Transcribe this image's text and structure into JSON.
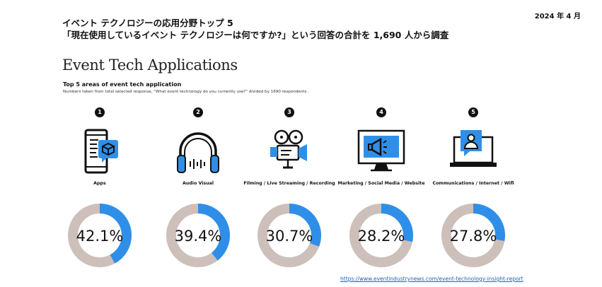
{
  "header": {
    "date": "2024 年 4 月",
    "jp_line1": "イベント テクノロジーの応用分野トップ 5",
    "jp_line2": "「現在使用しているイベント テクノロジーは何ですか?」という回答の合計を 1,690 人から調査"
  },
  "report": {
    "title": "Event Tech Applications",
    "subtitle": "Top 5 areas of event tech application",
    "note": "Numbers taken from total selected response, \"What event technology do you currently use?\" divided by 1690 respondents ."
  },
  "colors": {
    "accent": "#2f8fe8",
    "track": "#cdbfba",
    "ink": "#111111"
  },
  "chart_data": {
    "type": "donut",
    "title": "Top 5 areas of event tech application",
    "categories": [
      "Apps",
      "Audio Visual",
      "Filming / Live Streaming / Recording",
      "Marketing / Social Media / Website",
      "Communications / Internet / Wifi"
    ],
    "values": [
      42.1,
      39.4,
      30.7,
      28.2,
      27.8
    ],
    "value_labels": [
      "42.1%",
      "39.4%",
      "30.7%",
      "28.2%",
      "27.8%"
    ],
    "unit": "%",
    "ranks": [
      "1",
      "2",
      "3",
      "4",
      "5"
    ],
    "icons": [
      "smartphone-app-icon",
      "headphones-icon",
      "film-camera-icon",
      "monitor-megaphone-icon",
      "laptop-user-icon"
    ]
  },
  "footer": {
    "link_text": "https://www.eventindustrynews.com/event-technology-insight-report"
  }
}
